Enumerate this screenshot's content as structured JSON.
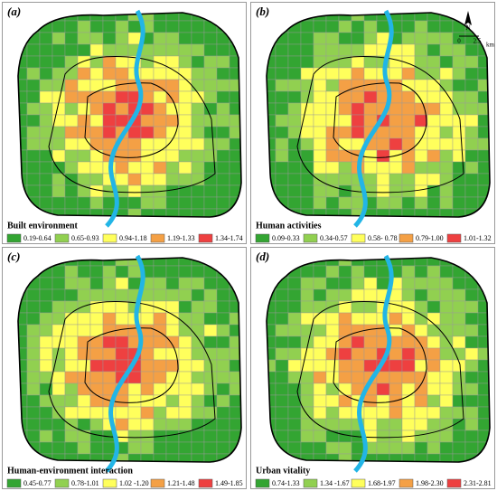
{
  "panels": [
    {
      "label": "(a)",
      "title": "Built environment",
      "legend": [
        {
          "range": "0.19-0.64",
          "color": "#33a532"
        },
        {
          "range": "0.65-0.93",
          "color": "#91d050"
        },
        {
          "range": "0.94-1.18",
          "color": "#ffff5c"
        },
        {
          "range": "1.19-1.33",
          "color": "#f4a045"
        },
        {
          "range": "1.34-1.74",
          "color": "#ee4040"
        }
      ]
    },
    {
      "label": "(b)",
      "title": "Human activities",
      "legend": [
        {
          "range": "0.09-0.33",
          "color": "#33a532"
        },
        {
          "range": "0.34-0.57",
          "color": "#91d050"
        },
        {
          "range": "0.58- 0.78",
          "color": "#ffff5c"
        },
        {
          "range": "0.79-1.00",
          "color": "#f4a045"
        },
        {
          "range": "1.01-1.32",
          "color": "#ee4040"
        }
      ]
    },
    {
      "label": "(c)",
      "title": "Human-environment interaction",
      "legend": [
        {
          "range": "0.45-0.77",
          "color": "#33a532"
        },
        {
          "range": "0.78-1.01",
          "color": "#91d050"
        },
        {
          "range": "1.02 -1.20",
          "color": "#ffff5c"
        },
        {
          "range": "1.21-1.48",
          "color": "#f4a045"
        },
        {
          "range": "1.49-1.85",
          "color": "#ee4040"
        }
      ]
    },
    {
      "label": "(d)",
      "title": "Urban vitality",
      "legend": [
        {
          "range": "0.74-1.33",
          "color": "#33a532"
        },
        {
          "range": "1.34 -1.67",
          "color": "#91d050"
        },
        {
          "range": "1.68-1.97",
          "color": "#ffff5c"
        },
        {
          "range": "1.98-2.30",
          "color": "#f4a045"
        },
        {
          "range": "2.31-2.81",
          "color": "#ee4040"
        }
      ]
    }
  ],
  "north": {
    "label": "N",
    "scale_start": "0",
    "scale_end": "2.5",
    "unit": "km"
  }
}
